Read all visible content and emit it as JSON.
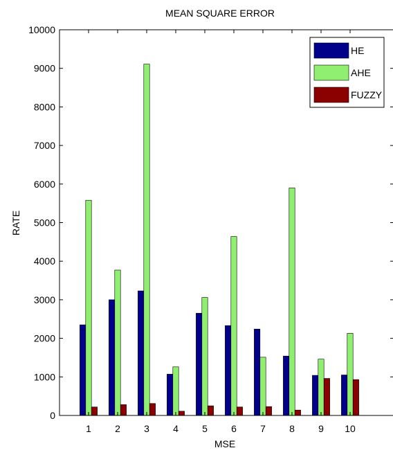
{
  "chart_data": {
    "type": "bar",
    "title": "MEAN SQUARE ERROR",
    "xlabel": "MSE",
    "ylabel": "RATE",
    "categories": [
      "1",
      "2",
      "3",
      "4",
      "5",
      "6",
      "7",
      "8",
      "9",
      "10"
    ],
    "ylim": [
      0,
      10000
    ],
    "xlim": [
      0,
      11.5
    ],
    "yticks": [
      0,
      1000,
      2000,
      3000,
      4000,
      5000,
      6000,
      7000,
      8000,
      9000,
      10000
    ],
    "legend_position": "top-right",
    "grid": false,
    "series": [
      {
        "name": "HE",
        "color": "#00008b",
        "values": [
          2350,
          3000,
          3230,
          1070,
          2650,
          2330,
          2240,
          1540,
          1040,
          1050
        ]
      },
      {
        "name": "AHE",
        "color": "#90ee70",
        "values": [
          5580,
          3770,
          9110,
          1260,
          3060,
          4640,
          1510,
          5900,
          1460,
          2130
        ]
      },
      {
        "name": "FUZZY",
        "color": "#8b0000",
        "values": [
          220,
          280,
          310,
          110,
          250,
          220,
          230,
          140,
          960,
          930
        ]
      }
    ]
  }
}
